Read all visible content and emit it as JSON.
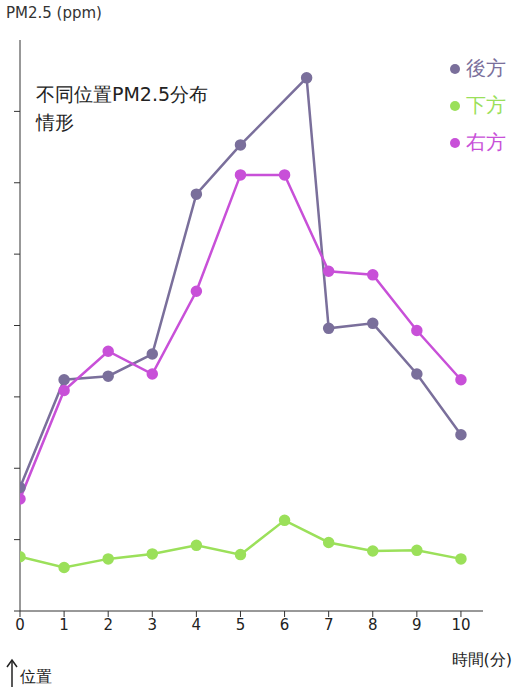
{
  "chart_data": {
    "type": "line",
    "title": "不同位置PM2.5分布情形",
    "y_label": "PM2.5 (ppm)",
    "x_label": "時間(分)",
    "annotation": "位置",
    "xlim": [
      0,
      10.5
    ],
    "xticks": [
      0,
      1,
      2,
      3,
      4,
      5,
      6,
      7,
      8,
      9,
      10
    ],
    "ylim": [
      0,
      8
    ],
    "yticks": [
      0,
      1,
      2,
      3,
      4,
      5,
      6,
      7
    ],
    "tick_labels": "x",
    "grid": false,
    "legend": "upper right",
    "series": [
      {
        "name": "後方",
        "color": "#7a6f9b",
        "marker": "circle",
        "x": [
          0,
          1,
          2,
          3,
          4,
          5,
          6.5,
          7,
          8,
          9,
          10
        ],
        "values": [
          1.73,
          3.24,
          3.29,
          3.6,
          5.84,
          6.53,
          7.47,
          3.96,
          4.03,
          3.32,
          2.47
        ]
      },
      {
        "name": "下方",
        "color": "#9be05a",
        "marker": "circle",
        "x": [
          0,
          1,
          2,
          3,
          4,
          5,
          6,
          7,
          8,
          9,
          10
        ],
        "values": [
          0.76,
          0.61,
          0.73,
          0.8,
          0.92,
          0.79,
          1.27,
          0.96,
          0.84,
          0.85,
          0.73
        ]
      },
      {
        "name": "右方",
        "color": "#c850d8",
        "marker": "circle",
        "x": [
          0,
          1,
          2,
          3,
          4,
          5,
          6,
          7,
          8,
          9,
          10
        ],
        "values": [
          1.57,
          3.09,
          3.64,
          3.32,
          4.48,
          6.11,
          6.11,
          4.76,
          4.71,
          3.93,
          3.24
        ]
      }
    ]
  }
}
